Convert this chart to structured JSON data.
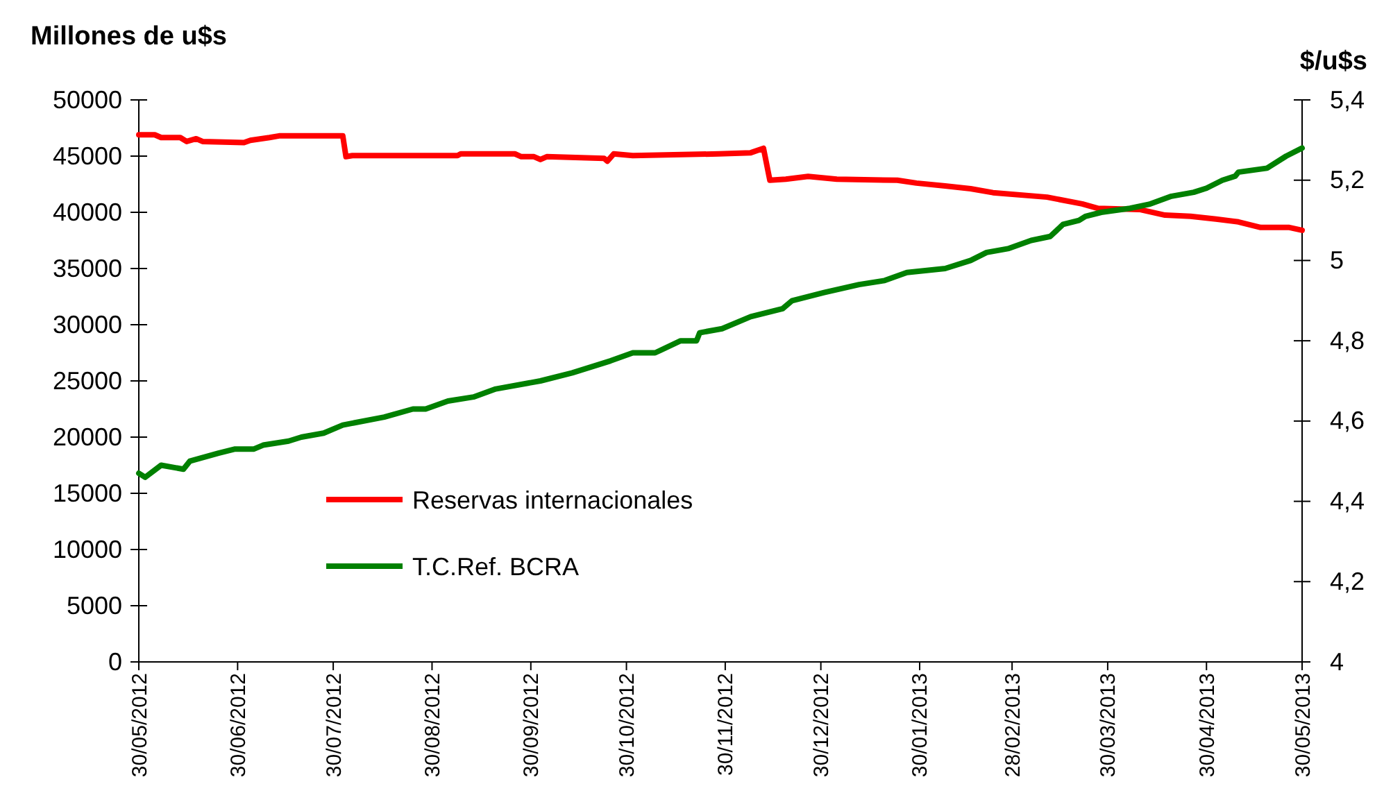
{
  "chart_data": {
    "type": "line",
    "ylabel": "Millones de u$s",
    "y2label": "$/u$s",
    "xlim": [
      "2012-05-30",
      "2013-05-30"
    ],
    "xticks": [
      {
        "value": "2012-05-30",
        "label": "30/05/2012"
      },
      {
        "value": "2012-06-30",
        "label": "30/06/2012"
      },
      {
        "value": "2012-07-30",
        "label": "30/07/2012"
      },
      {
        "value": "2012-08-30",
        "label": "30/08/2012"
      },
      {
        "value": "2012-09-30",
        "label": "30/09/2012"
      },
      {
        "value": "2012-10-30",
        "label": "30/10/2012"
      },
      {
        "value": "2012-11-30",
        "label": "30/11/2012"
      },
      {
        "value": "2012-12-30",
        "label": "30/12/2012"
      },
      {
        "value": "2013-01-30",
        "label": "30/01/2013"
      },
      {
        "value": "2013-02-28",
        "label": "28/02/2013"
      },
      {
        "value": "2013-03-30",
        "label": "30/03/2013"
      },
      {
        "value": "2013-04-30",
        "label": "30/04/2013"
      },
      {
        "value": "2013-05-30",
        "label": "30/05/2013"
      }
    ],
    "ylim": [
      0,
      50000
    ],
    "yticks": [
      0,
      5000,
      10000,
      15000,
      20000,
      25000,
      30000,
      35000,
      40000,
      45000,
      50000
    ],
    "y2lim": [
      4,
      5.4
    ],
    "y2ticks": [
      4,
      {
        "value": 4.2,
        "label": "4,2"
      },
      {
        "value": 4.4,
        "label": "4,4"
      },
      {
        "value": 4.6,
        "label": "4,6"
      },
      {
        "value": 4.8,
        "label": "4,8"
      },
      5,
      {
        "value": 5.2,
        "label": "5,2"
      },
      {
        "value": 5.4,
        "label": "5,4"
      }
    ],
    "grid": false,
    "legend": "bottom left",
    "marker": "none",
    "line_style": "solid",
    "series": [
      {
        "name": "Reservas internacionales",
        "color": "#ff0000",
        "x": [
          "2012-05-30",
          "2012-06-04",
          "2012-06-06",
          "2012-06-12",
          "2012-06-14",
          "2012-06-17",
          "2012-06-19",
          "2012-07-02",
          "2012-07-04",
          "2012-07-10",
          "2012-07-13",
          "2012-08-02",
          "2012-08-03",
          "2012-08-05",
          "2012-09-07",
          "2012-09-08",
          "2012-09-25",
          "2012-09-27",
          "2012-10-01",
          "2012-10-03",
          "2012-10-05",
          "2012-10-23",
          "2012-10-24",
          "2012-10-26",
          "2012-11-01",
          "2012-11-28",
          "2012-12-08",
          "2012-12-12",
          "2012-12-14",
          "2012-12-19",
          "2012-12-26",
          "2013-01-04",
          "2013-01-23",
          "2013-01-29",
          "2013-02-07",
          "2013-02-15",
          "2013-02-22",
          "2013-03-11",
          "2013-03-22",
          "2013-03-27",
          "2013-04-09",
          "2013-04-17",
          "2013-04-25",
          "2013-05-03",
          "2013-05-10",
          "2013-05-17",
          "2013-05-26",
          "2013-05-30"
        ],
        "values": [
          46900,
          46900,
          46650,
          46650,
          46300,
          46550,
          46300,
          46200,
          46400,
          46650,
          46800,
          46800,
          44950,
          45050,
          45050,
          45200,
          45200,
          44950,
          44950,
          44700,
          44950,
          44800,
          44550,
          45200,
          45050,
          45200,
          45300,
          45700,
          42850,
          42950,
          43200,
          42950,
          42850,
          42600,
          42350,
          42100,
          41750,
          41350,
          40750,
          40350,
          40250,
          39750,
          39650,
          39400,
          39150,
          38650,
          38650,
          38400
        ]
      },
      {
        "name": "T.C.Ref. BCRA",
        "color": "#008000",
        "axis": "y2",
        "x": [
          "2012-05-30",
          "2012-06-01",
          "2012-06-06",
          "2012-06-13",
          "2012-06-15",
          "2012-06-24",
          "2012-06-29",
          "2012-07-05",
          "2012-07-08",
          "2012-07-16",
          "2012-07-20",
          "2012-07-27",
          "2012-08-02",
          "2012-08-15",
          "2012-08-24",
          "2012-08-28",
          "2012-09-04",
          "2012-09-12",
          "2012-09-19",
          "2012-10-03",
          "2012-10-13",
          "2012-10-25",
          "2012-11-01",
          "2012-11-08",
          "2012-11-16",
          "2012-11-21",
          "2012-11-22",
          "2012-11-29",
          "2012-12-08",
          "2012-12-18",
          "2012-12-21",
          "2012-12-31",
          "2013-01-11",
          "2013-01-19",
          "2013-01-26",
          "2013-02-07",
          "2013-02-15",
          "2013-02-20",
          "2013-02-27",
          "2013-03-06",
          "2013-03-12",
          "2013-03-16",
          "2013-03-21",
          "2013-03-23",
          "2013-03-28",
          "2013-04-06",
          "2013-04-12",
          "2013-04-19",
          "2013-04-26",
          "2013-04-30",
          "2013-05-05",
          "2013-05-09",
          "2013-05-10",
          "2013-05-19",
          "2013-05-25",
          "2013-05-30"
        ],
        "values": [
          4.47,
          4.46,
          4.49,
          4.48,
          4.5,
          4.52,
          4.53,
          4.53,
          4.54,
          4.55,
          4.56,
          4.57,
          4.59,
          4.61,
          4.63,
          4.63,
          4.65,
          4.66,
          4.68,
          4.7,
          4.72,
          4.75,
          4.77,
          4.77,
          4.8,
          4.8,
          4.82,
          4.83,
          4.86,
          4.88,
          4.9,
          4.92,
          4.94,
          4.95,
          4.97,
          4.98,
          5.0,
          5.02,
          5.03,
          5.05,
          5.06,
          5.09,
          5.1,
          5.11,
          5.12,
          5.13,
          5.14,
          5.16,
          5.17,
          5.18,
          5.2,
          5.21,
          5.22,
          5.23,
          5.26,
          5.28
        ]
      }
    ]
  }
}
